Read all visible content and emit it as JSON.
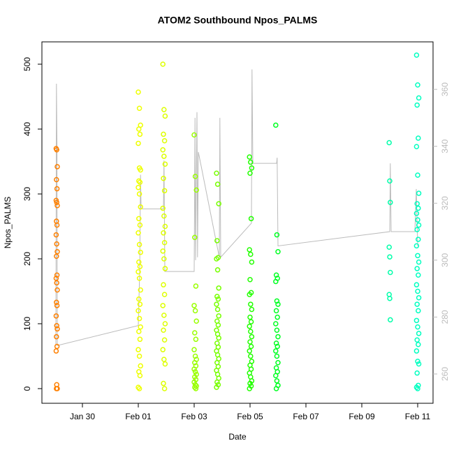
{
  "chart_data": {
    "type": "scatter",
    "title": "ATOM2 Southbound Npos_PALMS",
    "xlabel": "Date",
    "ylabel": "Npos_PALMS",
    "xlim": [
      28.55,
      42.55
    ],
    "ylim": [
      -22.6,
      534.4
    ],
    "y2lim": [
      249.7,
      376.7
    ],
    "xticks": [
      {
        "value": 30,
        "label": "Jan 30"
      },
      {
        "value": 32,
        "label": "Feb 01"
      },
      {
        "value": 34,
        "label": "Feb 03"
      },
      {
        "value": 36,
        "label": "Feb 05"
      },
      {
        "value": 38,
        "label": "Feb 07"
      },
      {
        "value": 40,
        "label": "Feb 09"
      },
      {
        "value": 42,
        "label": "Feb 11"
      }
    ],
    "yticks": [
      0,
      100,
      200,
      300,
      400,
      500
    ],
    "y2ticks": [
      260,
      280,
      300,
      320,
      340,
      360
    ],
    "series": [
      {
        "color": "#ff8000",
        "x": [
          29.06,
          29.08,
          29.1,
          29.07,
          29.09,
          29.06,
          29.08,
          29.1,
          29.07,
          29.09,
          29.06,
          29.08,
          29.1,
          29.07,
          29.09,
          29.06,
          29.08,
          29.1,
          29.07,
          29.09,
          29.06,
          29.08,
          29.1,
          29.07,
          29.09,
          29.06,
          29.08,
          29.1,
          29.07
        ],
        "values": [
          370,
          368,
          342,
          322,
          308,
          290,
          287,
          282,
          258,
          252,
          237,
          223,
          211,
          204,
          175,
          170,
          163,
          152,
          133,
          128,
          112,
          97,
          92,
          80,
          65,
          58,
          6,
          0,
          0
        ]
      },
      {
        "color": "#eeff00",
        "x": [
          32.0,
          32.04,
          32.08,
          32.02,
          32.06,
          32.0,
          32.04,
          32.08,
          32.02,
          32.06,
          32.0,
          32.04,
          32.08,
          32.02,
          32.06,
          32.0,
          32.04,
          32.08,
          32.02,
          32.06,
          32.0,
          32.04,
          32.08,
          32.02,
          32.06,
          32.0,
          32.04,
          32.08,
          32.02,
          32.06,
          32.0,
          32.04,
          32.08,
          32.02,
          32.06,
          32.0,
          32.04
        ],
        "values": [
          457,
          432,
          406,
          400,
          392,
          378,
          340,
          337,
          320,
          318,
          310,
          300,
          280,
          262,
          252,
          240,
          222,
          210,
          195,
          188,
          180,
          170,
          152,
          138,
          130,
          120,
          108,
          95,
          88,
          76,
          60,
          50,
          35,
          26,
          20,
          2,
          0
        ]
      },
      {
        "color": "#ddff00",
        "x": [
          32.88,
          32.92,
          32.96,
          32.9,
          32.94,
          32.88,
          32.92,
          32.96,
          32.9,
          32.94,
          32.88,
          32.92,
          32.96,
          32.9,
          32.94,
          32.88,
          32.92,
          32.96,
          32.9,
          32.94,
          32.88,
          32.92,
          32.96,
          32.9,
          32.94,
          32.88,
          32.92,
          32.96,
          32.9,
          32.94
        ],
        "values": [
          500,
          430,
          420,
          392,
          382,
          368,
          358,
          346,
          324,
          305,
          278,
          266,
          250,
          240,
          225,
          212,
          200,
          185,
          160,
          145,
          128,
          113,
          100,
          90,
          75,
          60,
          45,
          38,
          8,
          0
        ]
      },
      {
        "color": "#99ff00",
        "x": [
          34.0,
          34.04,
          34.08,
          34.02,
          34.06,
          34.0,
          34.04,
          34.08,
          34.02,
          34.06,
          34.0,
          34.04,
          34.08,
          34.02,
          34.06,
          34.0,
          34.04,
          34.08,
          34.02,
          34.06,
          34.0,
          34.04,
          34.08,
          34.02,
          34.06
        ],
        "values": [
          391,
          327,
          306,
          233,
          158,
          128,
          120,
          104,
          86,
          76,
          60,
          50,
          45,
          40,
          35,
          30,
          26,
          22,
          18,
          14,
          10,
          6,
          4,
          2,
          0
        ]
      },
      {
        "color": "#77ff00",
        "x": [
          34.8,
          34.84,
          34.88,
          34.82,
          34.86,
          34.8,
          34.84,
          34.88,
          34.82,
          34.86,
          34.8,
          34.84,
          34.88,
          34.82,
          34.86,
          34.8,
          34.84,
          34.88,
          34.82,
          34.86,
          34.8,
          34.84,
          34.88,
          34.82,
          34.86,
          34.8,
          34.84,
          34.88,
          34.82,
          34.86,
          34.8
        ],
        "values": [
          332,
          315,
          285,
          228,
          202,
          200,
          183,
          155,
          142,
          138,
          130,
          122,
          112,
          104,
          98,
          90,
          84,
          78,
          70,
          64,
          58,
          52,
          46,
          40,
          34,
          28,
          22,
          16,
          10,
          6,
          2
        ]
      },
      {
        "color": "#22ff00",
        "x": [
          35.98,
          36.02,
          36.06,
          36.0,
          36.04,
          35.98,
          36.02,
          36.06,
          36.0,
          36.04,
          35.98,
          36.02,
          36.06,
          36.0,
          36.04,
          35.98,
          36.02,
          36.06,
          36.0,
          36.04,
          35.98,
          36.02,
          36.06,
          36.0,
          36.04,
          35.98,
          36.02,
          36.06,
          36.0,
          36.04,
          35.98
        ],
        "values": [
          357,
          349,
          340,
          332,
          262,
          214,
          207,
          195,
          168,
          148,
          145,
          130,
          122,
          110,
          103,
          96,
          88,
          80,
          72,
          65,
          58,
          50,
          42,
          36,
          30,
          24,
          18,
          12,
          8,
          4,
          0
        ]
      },
      {
        "color": "#00ff22",
        "x": [
          36.92,
          36.96,
          37.0,
          36.94,
          36.98,
          36.92,
          36.96,
          37.0,
          36.94,
          36.98,
          36.92,
          36.96,
          37.0,
          36.94,
          36.98,
          36.92,
          36.96,
          37.0,
          36.94,
          36.98,
          36.92,
          36.96,
          37.0,
          36.94
        ],
        "values": [
          406,
          237,
          211,
          175,
          170,
          165,
          135,
          130,
          120,
          110,
          100,
          90,
          80,
          70,
          65,
          58,
          50,
          40,
          32,
          26,
          20,
          12,
          5,
          0
        ]
      },
      {
        "color": "#00ffaa",
        "x": [
          40.98,
          41.0,
          41.02,
          40.98,
          41.0,
          41.02,
          40.98,
          41.0,
          41.02
        ],
        "values": [
          379,
          320,
          287,
          218,
          203,
          179,
          145,
          139,
          106
        ]
      },
      {
        "color": "#00ffc0",
        "x": [
          41.96,
          42.0,
          42.04,
          41.98,
          42.02,
          41.96,
          42.0,
          42.04,
          41.98,
          42.02,
          41.96,
          42.0,
          42.04,
          41.98,
          42.02,
          41.96,
          42.0,
          42.04,
          41.98,
          42.02,
          41.96,
          42.0,
          42.04,
          41.98,
          42.02,
          41.96,
          42.0,
          42.04,
          41.98,
          42.02,
          41.96,
          42.0,
          42.04,
          41.98,
          42.02,
          41.96,
          42.0
        ],
        "values": [
          514,
          468,
          448,
          437,
          386,
          373,
          329,
          301,
          285,
          278,
          270,
          260,
          252,
          245,
          230,
          220,
          205,
          195,
          185,
          175,
          160,
          150,
          140,
          130,
          120,
          105,
          95,
          85,
          75,
          68,
          58,
          42,
          38,
          24,
          5,
          2,
          0
        ]
      },
      {
        "type": "line",
        "axis": "y2",
        "color": "#bbbbbb",
        "x": [
          29.05,
          29.07,
          29.09,
          29.1,
          32.0,
          32.05,
          32.08,
          32.1,
          32.9,
          32.92,
          32.95,
          34.0,
          34.03,
          34.05,
          34.1,
          34.12,
          34.15,
          34.9,
          34.92,
          34.95,
          36.05,
          36.07,
          36.1,
          36.95,
          36.97,
          37.0,
          41.0,
          41.02,
          41.05,
          41.9,
          41.95,
          42.0
        ],
        "values": [
          270,
          362,
          340,
          270,
          277,
          296,
          330,
          318,
          318,
          335,
          296,
          296,
          350,
          300,
          352,
          301,
          338,
          301,
          350,
          301,
          313,
          367,
          334,
          334,
          336,
          305,
          310,
          334,
          310,
          310,
          325,
          305
        ]
      }
    ]
  }
}
